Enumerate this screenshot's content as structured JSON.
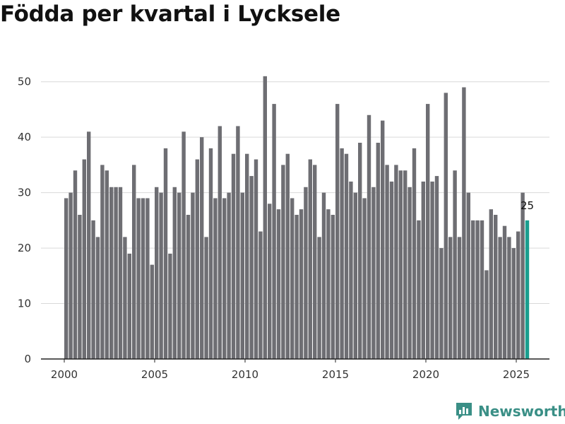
{
  "chart_data": {
    "type": "bar",
    "title": "Födda per kvartal i Lycksele",
    "xlabel": "",
    "ylabel": "",
    "ylim": [
      0,
      52
    ],
    "y_ticks": [
      0,
      10,
      20,
      30,
      40,
      50
    ],
    "x_ticks": [
      2000,
      2005,
      2010,
      2015,
      2020,
      2025
    ],
    "x_start": 2000,
    "grid": true,
    "default_color": "#6e6e73",
    "highlight_color": "#1a9e8f",
    "highlight_label": "25",
    "values": [
      29,
      30,
      34,
      26,
      36,
      41,
      25,
      22,
      35,
      34,
      31,
      31,
      31,
      22,
      19,
      35,
      29,
      29,
      29,
      17,
      31,
      30,
      38,
      19,
      31,
      30,
      41,
      26,
      30,
      36,
      40,
      22,
      38,
      29,
      42,
      29,
      30,
      37,
      42,
      30,
      37,
      33,
      36,
      23,
      51,
      28,
      46,
      27,
      35,
      37,
      29,
      26,
      27,
      31,
      36,
      35,
      22,
      30,
      27,
      26,
      46,
      38,
      37,
      32,
      30,
      39,
      29,
      44,
      31,
      39,
      43,
      35,
      32,
      35,
      34,
      34,
      31,
      38,
      25,
      32,
      46,
      32,
      33,
      20,
      48,
      22,
      34,
      22,
      49,
      30,
      25,
      25,
      25,
      16,
      27,
      26,
      22,
      24,
      22,
      20,
      23,
      30,
      25
    ]
  },
  "brand": {
    "name": "Newsworthy",
    "icon": "newsworthy-logo-icon"
  }
}
